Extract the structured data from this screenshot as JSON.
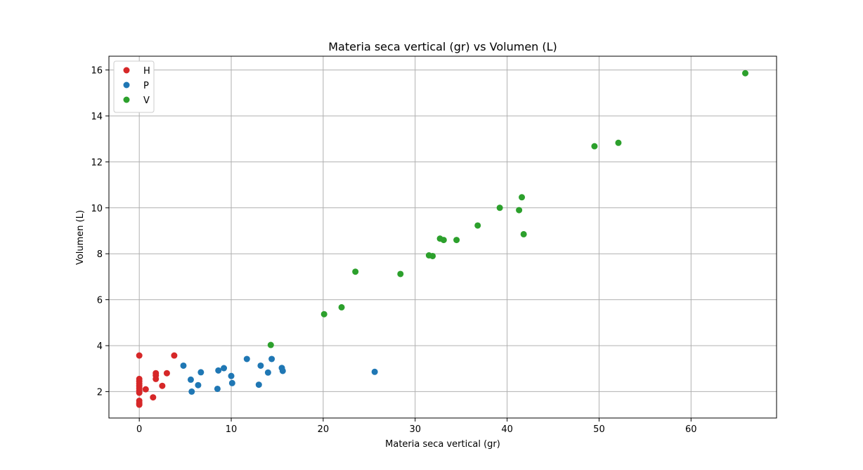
{
  "chart_data": {
    "type": "scatter",
    "title": "Materia seca vertical (gr) vs Volumen (L)",
    "xlabel": "Materia seca vertical (gr)",
    "ylabel": "Volumen (L)",
    "xlim": [
      -3.3,
      69.3
    ],
    "ylim": [
      0.85,
      16.6
    ],
    "xticks": [
      0,
      10,
      20,
      30,
      40,
      50,
      60
    ],
    "yticks": [
      2,
      4,
      6,
      8,
      10,
      12,
      14,
      16
    ],
    "grid": true,
    "legend_position": "top-left",
    "series": [
      {
        "name": "H",
        "color": "#d62728",
        "points": [
          [
            0,
            3.57
          ],
          [
            0,
            2.55
          ],
          [
            0,
            2.45
          ],
          [
            0,
            2.35
          ],
          [
            0,
            2.25
          ],
          [
            0,
            2.15
          ],
          [
            0,
            2.05
          ],
          [
            0,
            1.95
          ],
          [
            0,
            1.6
          ],
          [
            0,
            1.5
          ],
          [
            0,
            1.43
          ],
          [
            0.7,
            2.1
          ],
          [
            1.5,
            1.75
          ],
          [
            1.8,
            2.8
          ],
          [
            1.8,
            2.7
          ],
          [
            1.8,
            2.55
          ],
          [
            2.5,
            2.25
          ],
          [
            3.0,
            2.8
          ],
          [
            3.8,
            3.57
          ]
        ]
      },
      {
        "name": "P",
        "color": "#1f77b4",
        "points": [
          [
            4.8,
            3.13
          ],
          [
            5.6,
            2.52
          ],
          [
            5.7,
            2.0
          ],
          [
            6.4,
            2.28
          ],
          [
            6.7,
            2.84
          ],
          [
            8.5,
            2.12
          ],
          [
            8.6,
            2.92
          ],
          [
            9.2,
            3.02
          ],
          [
            10.0,
            2.68
          ],
          [
            10.1,
            2.37
          ],
          [
            11.7,
            3.42
          ],
          [
            13.0,
            2.3
          ],
          [
            13.2,
            3.13
          ],
          [
            14.0,
            2.83
          ],
          [
            14.4,
            3.42
          ],
          [
            15.5,
            3.03
          ],
          [
            15.6,
            2.9
          ],
          [
            25.6,
            2.86
          ]
        ]
      },
      {
        "name": "V",
        "color": "#2ca02c",
        "points": [
          [
            14.3,
            4.03
          ],
          [
            20.1,
            5.37
          ],
          [
            22.0,
            5.67
          ],
          [
            23.5,
            7.22
          ],
          [
            28.4,
            7.12
          ],
          [
            31.5,
            7.93
          ],
          [
            31.9,
            7.9
          ],
          [
            32.7,
            8.66
          ],
          [
            33.1,
            8.6
          ],
          [
            34.5,
            8.6
          ],
          [
            36.8,
            9.23
          ],
          [
            39.2,
            10.0
          ],
          [
            41.3,
            9.9
          ],
          [
            41.6,
            10.46
          ],
          [
            41.8,
            8.85
          ],
          [
            49.5,
            12.68
          ],
          [
            52.1,
            12.83
          ],
          [
            65.9,
            15.86
          ]
        ]
      }
    ]
  }
}
